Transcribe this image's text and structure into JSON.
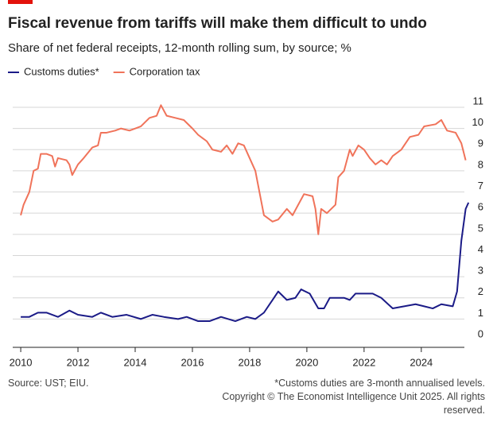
{
  "chart_data": {
    "type": "line",
    "title": "Fiscal revenue from tariffs will make them difficult to undo",
    "subtitle": "Share of net federal receipts, 12-month rolling sum, by source; %",
    "source": "Source: UST; EIU.",
    "footnote": "*Customs duties are 3-month annualised levels.",
    "copyright": "Copyright © The Economist Intelligence Unit 2025. All rights reserved.",
    "xlim": [
      2009.72,
      2025.95
    ],
    "xticks": [
      2010,
      2012,
      2014,
      2016,
      2018,
      2020,
      2022,
      2024
    ],
    "ylim": [
      0,
      11
    ],
    "yticks": [
      0,
      1,
      2,
      3,
      4,
      5,
      6,
      7,
      8,
      9,
      10,
      11
    ],
    "grid": true,
    "legend": "top-left",
    "series": [
      {
        "name": "Customs duties*",
        "color": "#1b1b87",
        "x": [
          2010,
          2010.3,
          2010.6,
          2010.9,
          2011.3,
          2011.7,
          2012.0,
          2012.5,
          2012.8,
          2013.2,
          2013.7,
          2014.2,
          2014.6,
          2015.0,
          2015.5,
          2015.8,
          2016.2,
          2016.6,
          2017.0,
          2017.5,
          2017.9,
          2018.2,
          2018.5,
          2018.8,
          2019.0,
          2019.3,
          2019.6,
          2019.8,
          2020.1,
          2020.4,
          2020.6,
          2020.8,
          2021.1,
          2021.3,
          2021.5,
          2021.7,
          2022.0,
          2022.3,
          2022.6,
          2023.0,
          2023.4,
          2023.8,
          2024.1,
          2024.4,
          2024.7,
          2025.1,
          2025.25,
          2025.4,
          2025.55,
          2025.65
        ],
        "values": [
          1.1,
          1.1,
          1.3,
          1.3,
          1.1,
          1.4,
          1.2,
          1.1,
          1.3,
          1.1,
          1.2,
          1.0,
          1.2,
          1.1,
          1.0,
          1.1,
          0.9,
          0.9,
          1.1,
          0.9,
          1.1,
          1.0,
          1.3,
          1.9,
          2.3,
          1.9,
          2.0,
          2.4,
          2.2,
          1.5,
          1.5,
          2.0,
          2.0,
          2.0,
          1.9,
          2.2,
          2.2,
          2.2,
          2.0,
          1.5,
          1.6,
          1.7,
          1.6,
          1.5,
          1.7,
          1.6,
          2.3,
          4.7,
          6.2,
          6.5
        ]
      },
      {
        "name": "Corporation tax",
        "color": "#f0735a",
        "x": [
          2010.0,
          2010.1,
          2010.3,
          2010.45,
          2010.6,
          2010.7,
          2010.9,
          2011.1,
          2011.2,
          2011.3,
          2011.6,
          2011.7,
          2011.8,
          2012.0,
          2012.2,
          2012.5,
          2012.7,
          2012.8,
          2013.0,
          2013.3,
          2013.5,
          2013.8,
          2014.0,
          2014.2,
          2014.5,
          2014.75,
          2014.9,
          2015.1,
          2015.4,
          2015.7,
          2016.0,
          2016.2,
          2016.5,
          2016.7,
          2017.0,
          2017.2,
          2017.4,
          2017.6,
          2017.8,
          2018.0,
          2018.2,
          2018.3,
          2018.5,
          2018.8,
          2019.0,
          2019.3,
          2019.5,
          2019.7,
          2019.9,
          2020.2,
          2020.3,
          2020.4,
          2020.5,
          2020.7,
          2021.0,
          2021.1,
          2021.3,
          2021.5,
          2021.6,
          2021.8,
          2022.0,
          2022.2,
          2022.4,
          2022.6,
          2022.8,
          2023.0,
          2023.3,
          2023.6,
          2023.9,
          2024.1,
          2024.5,
          2024.7,
          2024.9,
          2025.2,
          2025.4,
          2025.55
        ],
        "values": [
          5.9,
          6.4,
          7.0,
          8.0,
          8.1,
          8.8,
          8.8,
          8.7,
          8.2,
          8.6,
          8.5,
          8.3,
          7.8,
          8.3,
          8.6,
          9.1,
          9.2,
          9.8,
          9.8,
          9.9,
          10.0,
          9.9,
          10.0,
          10.1,
          10.5,
          10.6,
          11.1,
          10.6,
          10.5,
          10.4,
          10.0,
          9.7,
          9.4,
          9.0,
          8.9,
          9.2,
          8.8,
          9.3,
          9.2,
          8.6,
          8.0,
          7.3,
          5.9,
          5.6,
          5.7,
          6.2,
          5.9,
          6.4,
          6.9,
          6.8,
          6.2,
          5.0,
          6.2,
          6.0,
          6.4,
          7.7,
          8.0,
          9.0,
          8.7,
          9.2,
          9.0,
          8.6,
          8.3,
          8.5,
          8.3,
          8.7,
          9.0,
          9.6,
          9.7,
          10.1,
          10.2,
          10.4,
          9.9,
          9.8,
          9.3,
          8.5
        ]
      }
    ]
  }
}
